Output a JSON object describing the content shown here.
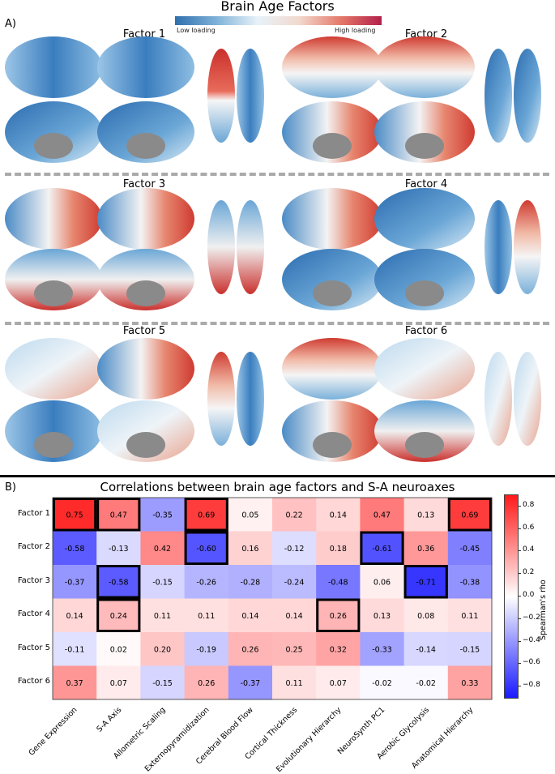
{
  "panel_a": {
    "label": "A)",
    "title": "Brain Age Factors",
    "colorbar": {
      "low_label": "Low loading",
      "high_label": "High loading"
    },
    "factors": [
      "Factor 1",
      "Factor 2",
      "Factor 3",
      "Factor 4",
      "Factor 5",
      "Factor 6"
    ]
  },
  "panel_b": {
    "label": "B)"
  },
  "chart_data": {
    "type": "heatmap",
    "title": "Correlations between brain age factors and S-A neuroaxes",
    "rows": [
      "Factor 1",
      "Factor 2",
      "Factor 3",
      "Factor 4",
      "Factor 5",
      "Factor 6"
    ],
    "columns": [
      "Gene Expression",
      "S-A Axis",
      "Allometric Scaling",
      "Externopyramidization",
      "Cerebral Blood Flow",
      "Cortical Thickness",
      "Evolutionary Hierarchy",
      "NeuroSynth PC1",
      "Aerobic Glycolysis",
      "Anatomical Hierarchy"
    ],
    "values": [
      [
        0.75,
        0.47,
        -0.35,
        0.69,
        0.05,
        0.22,
        0.14,
        0.47,
        0.13,
        0.69
      ],
      [
        -0.58,
        -0.13,
        0.42,
        -0.6,
        0.16,
        -0.12,
        0.18,
        -0.61,
        0.36,
        -0.45
      ],
      [
        -0.37,
        -0.58,
        -0.15,
        -0.26,
        -0.28,
        -0.24,
        -0.48,
        0.06,
        -0.71,
        -0.38
      ],
      [
        0.14,
        0.24,
        0.11,
        0.11,
        0.14,
        0.14,
        0.26,
        0.13,
        0.08,
        0.11
      ],
      [
        -0.11,
        0.02,
        0.2,
        -0.19,
        0.26,
        0.25,
        0.32,
        -0.33,
        -0.14,
        -0.15
      ],
      [
        0.37,
        0.07,
        -0.15,
        0.26,
        -0.37,
        0.11,
        0.07,
        -0.02,
        -0.02,
        0.33
      ]
    ],
    "value_labels": [
      [
        "0.75",
        "0.47",
        "-0.35",
        "0.69",
        "0.05",
        "0.22",
        "0.14",
        "0.47",
        "0.13",
        "0.69"
      ],
      [
        "-0.58",
        "-0.13",
        "0.42",
        "-0.60",
        "0.16",
        "-0.12",
        "0.18",
        "-0.61",
        "0.36",
        "-0.45"
      ],
      [
        "-0.37",
        "-0.58",
        "-0.15",
        "-0.26",
        "-0.28",
        "-0.24",
        "-0.48",
        "0.06",
        "-0.71",
        "-0.38"
      ],
      [
        "0.14",
        "0.24",
        "0.11",
        "0.11",
        "0.14",
        "0.14",
        "0.26",
        "0.13",
        "0.08",
        "0.11"
      ],
      [
        "-0.11",
        "0.02",
        "0.20",
        "-0.19",
        "0.26",
        "0.25",
        "0.32",
        "-0.33",
        "-0.14",
        "-0.15"
      ],
      [
        "0.37",
        "0.07",
        "-0.15",
        "0.26",
        "-0.37",
        "0.11",
        "0.07",
        "-0.02",
        "-0.02",
        "0.33"
      ]
    ],
    "highlighted": [
      [
        0,
        0
      ],
      [
        0,
        1
      ],
      [
        0,
        3
      ],
      [
        0,
        9
      ],
      [
        1,
        3
      ],
      [
        1,
        7
      ],
      [
        2,
        1
      ],
      [
        2,
        8
      ],
      [
        3,
        1
      ],
      [
        3,
        6
      ]
    ],
    "colormap": "bwr",
    "vlim": [
      -0.9,
      0.9
    ],
    "colorbar": {
      "label": "Spearman's rho",
      "ticks": [
        0.8,
        0.6,
        0.4,
        0.2,
        0.0,
        -0.2,
        -0.4,
        -0.6,
        -0.8
      ],
      "tick_labels": [
        "0.8",
        "0.6",
        "0.4",
        "0.2",
        "0.0",
        "−0.2",
        "−0.4",
        "−0.6",
        "−0.8"
      ]
    }
  }
}
